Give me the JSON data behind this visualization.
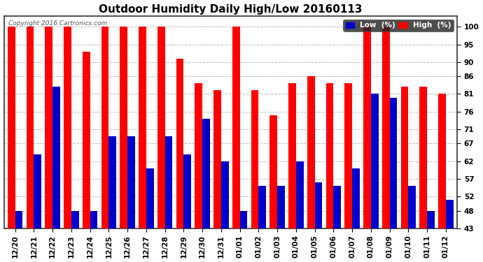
{
  "title": "Outdoor Humidity Daily High/Low 20160113",
  "copyright": "Copyright 2016 Cartronics.com",
  "labels": [
    "12/20",
    "12/21",
    "12/22",
    "12/23",
    "12/24",
    "12/25",
    "12/26",
    "12/27",
    "12/28",
    "12/29",
    "12/30",
    "12/31",
    "01/01",
    "01/02",
    "01/03",
    "01/04",
    "01/05",
    "01/06",
    "01/07",
    "01/08",
    "01/09",
    "01/10",
    "01/11",
    "01/12"
  ],
  "high": [
    100,
    100,
    100,
    100,
    93,
    100,
    100,
    100,
    100,
    91,
    84,
    82,
    100,
    82,
    75,
    84,
    86,
    84,
    84,
    100,
    100,
    83,
    83,
    81
  ],
  "low": [
    48,
    64,
    83,
    48,
    48,
    69,
    69,
    60,
    69,
    64,
    74,
    62,
    48,
    55,
    55,
    62,
    56,
    55,
    60,
    81,
    80,
    55,
    48,
    51
  ],
  "high_color": "#ff0000",
  "low_color": "#0000cc",
  "bg_color": "#ffffff",
  "plot_bg_color": "#ffffff",
  "grid_color": "#bbbbbb",
  "yticks": [
    43,
    48,
    52,
    57,
    62,
    67,
    71,
    76,
    81,
    86,
    90,
    95,
    100
  ],
  "ylim": [
    43,
    103
  ],
  "title_fontsize": 11,
  "tick_fontsize": 7.5,
  "legend_fontsize": 7.5
}
